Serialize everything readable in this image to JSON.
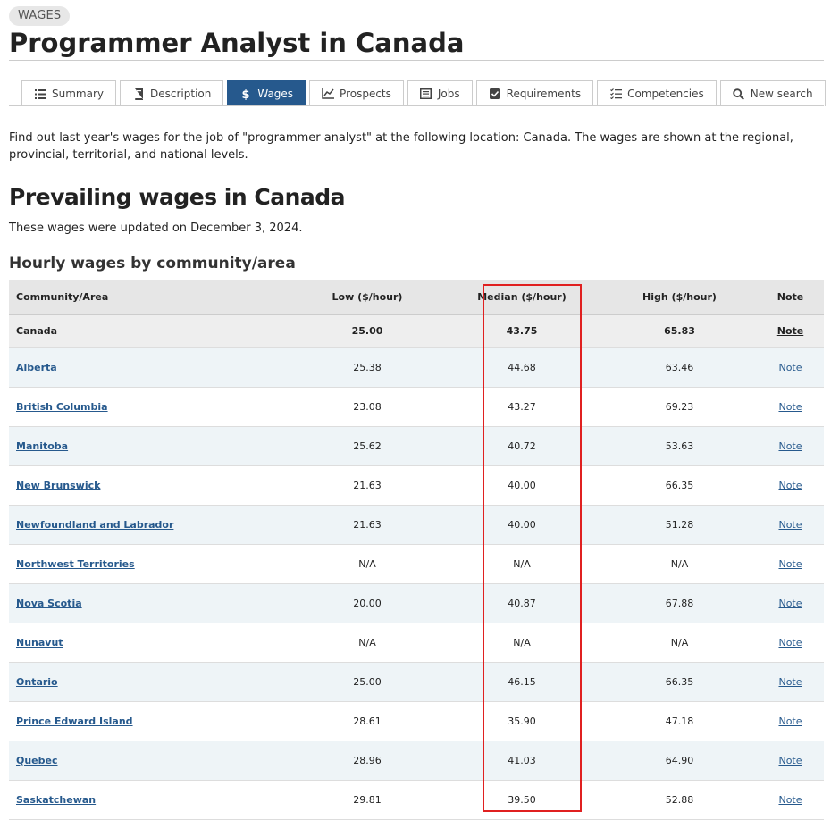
{
  "badge": "WAGES",
  "title": "Programmer Analyst in Canada",
  "tabs": [
    {
      "label": "Summary",
      "icon": "list-icon"
    },
    {
      "label": "Description",
      "icon": "book-icon"
    },
    {
      "label": "Wages",
      "icon": "dollar-icon"
    },
    {
      "label": "Prospects",
      "icon": "chart-line-icon"
    },
    {
      "label": "Jobs",
      "icon": "list-box-icon"
    },
    {
      "label": "Requirements",
      "icon": "checkbox-icon"
    },
    {
      "label": "Competencies",
      "icon": "checklist-icon"
    },
    {
      "label": "New search",
      "icon": "search-icon"
    }
  ],
  "active_tab": "Wages",
  "intro": "Find out last year's wages for the job of \"programmer analyst\" at the following location: Canada. The wages are shown at the regional, provincial, territorial, and national levels.",
  "section_title": "Prevailing wages in Canada",
  "updated_text": "These wages were updated on December 3, 2024.",
  "table_title": "Hourly wages by community/area",
  "table": {
    "headers": {
      "area": "Community/Area",
      "low": "Low ($/hour)",
      "median": "Median ($/hour)",
      "high": "High ($/hour)",
      "note": "Note"
    },
    "rows": [
      {
        "area": "Canada",
        "low": "25.00",
        "median": "43.75",
        "high": "65.83",
        "note": "Note"
      },
      {
        "area": "Alberta",
        "low": "25.38",
        "median": "44.68",
        "high": "63.46",
        "note": "Note"
      },
      {
        "area": "British Columbia",
        "low": "23.08",
        "median": "43.27",
        "high": "69.23",
        "note": "Note"
      },
      {
        "area": "Manitoba",
        "low": "25.62",
        "median": "40.72",
        "high": "53.63",
        "note": "Note"
      },
      {
        "area": "New Brunswick",
        "low": "21.63",
        "median": "40.00",
        "high": "66.35",
        "note": "Note"
      },
      {
        "area": "Newfoundland and Labrador",
        "low": "21.63",
        "median": "40.00",
        "high": "51.28",
        "note": "Note"
      },
      {
        "area": "Northwest Territories",
        "low": "N/A",
        "median": "N/A",
        "high": "N/A",
        "note": "Note"
      },
      {
        "area": "Nova Scotia",
        "low": "20.00",
        "median": "40.87",
        "high": "67.88",
        "note": "Note"
      },
      {
        "area": "Nunavut",
        "low": "N/A",
        "median": "N/A",
        "high": "N/A",
        "note": "Note"
      },
      {
        "area": "Ontario",
        "low": "25.00",
        "median": "46.15",
        "high": "66.35",
        "note": "Note"
      },
      {
        "area": "Prince Edward Island",
        "low": "28.61",
        "median": "35.90",
        "high": "47.18",
        "note": "Note"
      },
      {
        "area": "Quebec",
        "low": "28.96",
        "median": "41.03",
        "high": "64.90",
        "note": "Note"
      },
      {
        "area": "Saskatchewan",
        "low": "29.81",
        "median": "39.50",
        "high": "52.88",
        "note": "Note"
      }
    ]
  },
  "colors": {
    "accent": "#26598d",
    "highlight": "#e02020",
    "row_alt": "#eef4f7",
    "header_bg": "#e6e6e6"
  }
}
